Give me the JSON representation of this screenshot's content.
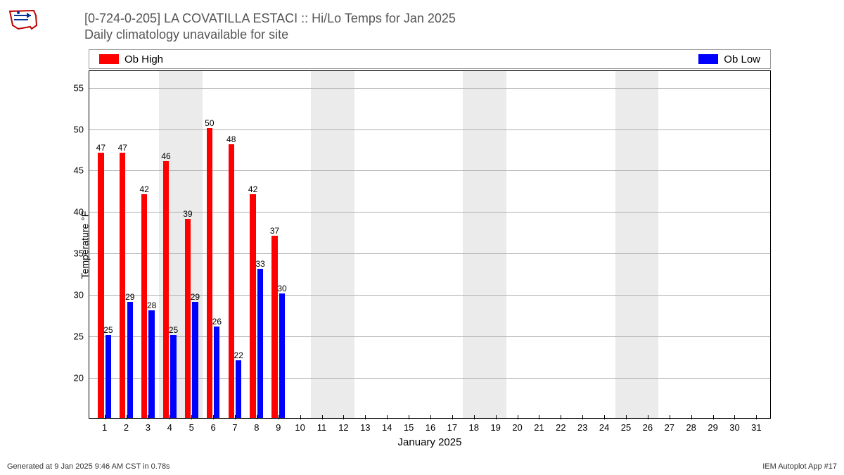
{
  "logo_colors": {
    "outline": "#c00000",
    "symbol": "#003399"
  },
  "title": {
    "line1": "[0-724-0-205] LA COVATILLA  ESTACI :: Hi/Lo Temps for Jan 2025",
    "line2": "Daily climatology unavailable for site"
  },
  "legend": {
    "high": {
      "label": "Ob High",
      "color": "#ff0000"
    },
    "low": {
      "label": "Ob Low",
      "color": "#0000ff"
    }
  },
  "chart": {
    "type": "bar",
    "background_color": "#ffffff",
    "weekend_band_color": "#ebebeb",
    "grid_color": "#b0b0b0",
    "ylabel": "Temperature °F",
    "xlabel": "January 2025",
    "ylim": [
      15,
      57
    ],
    "yticks": [
      20,
      25,
      30,
      35,
      40,
      45,
      50,
      55
    ],
    "x_days": [
      1,
      2,
      3,
      4,
      5,
      6,
      7,
      8,
      9,
      10,
      11,
      12,
      13,
      14,
      15,
      16,
      17,
      18,
      19,
      20,
      21,
      22,
      23,
      24,
      25,
      26,
      27,
      28,
      29,
      30,
      31
    ],
    "weekend_days": [
      [
        4,
        5
      ],
      [
        11,
        12
      ],
      [
        18,
        19
      ],
      [
        25,
        26
      ]
    ],
    "data": {
      "high": [
        47,
        47,
        42,
        46,
        39,
        50,
        48,
        42,
        37
      ],
      "low": [
        25,
        29,
        28,
        25,
        29,
        26,
        22,
        33,
        30
      ]
    },
    "bar_half_width_days": 0.27,
    "label_fontsize": 12,
    "tick_fontsize": 13
  },
  "footer": {
    "left": "Generated at 9 Jan 2025 9:46 AM CST in 0.78s",
    "right": "IEM Autoplot App #17"
  }
}
